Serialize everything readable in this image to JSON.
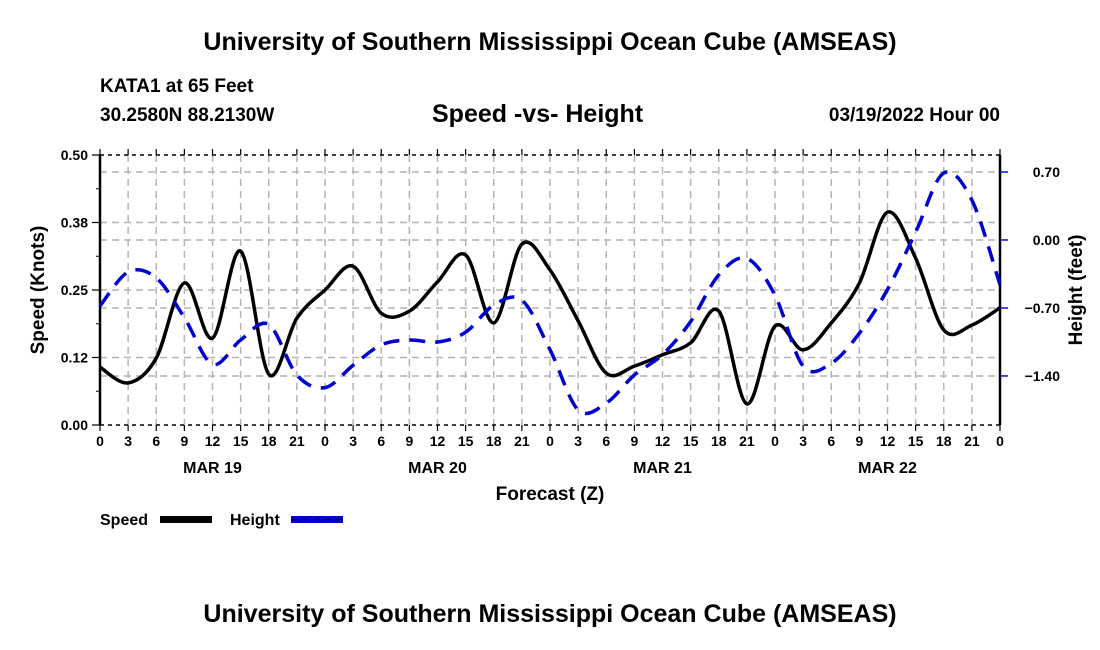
{
  "header": {
    "title": "University of Southern Mississippi Ocean Cube (AMSEAS)",
    "station": "KATA1 at 65 Feet",
    "coords": "30.2580N  88.2130W",
    "subtitle": "Speed -vs- Height",
    "datetime": "03/19/2022 Hour 00"
  },
  "footer": {
    "title": "University of Southern Mississippi Ocean Cube (AMSEAS)"
  },
  "chart_data": {
    "type": "line",
    "title": "Speed -vs- Height",
    "xlabel": "Forecast (Z)",
    "ylabel": "Speed (Knots)",
    "y2label": "Height (feet)",
    "x_hours": [
      0,
      3,
      6,
      9,
      12,
      15,
      18,
      21,
      24,
      27,
      30,
      33,
      36,
      39,
      42,
      45,
      48,
      51,
      54,
      57,
      60,
      63,
      66,
      69,
      72,
      75,
      78,
      81,
      84,
      87,
      90,
      93,
      96
    ],
    "x_tick_labels": [
      "0",
      "3",
      "6",
      "9",
      "12",
      "15",
      "18",
      "21",
      "0",
      "3",
      "6",
      "9",
      "12",
      "15",
      "18",
      "21",
      "0",
      "3",
      "6",
      "9",
      "12",
      "15",
      "18",
      "21",
      "0",
      "3",
      "6",
      "9",
      "12",
      "15",
      "18",
      "21",
      "0"
    ],
    "day_labels": [
      {
        "label": "MAR 19",
        "center_hour": 12
      },
      {
        "label": "MAR 20",
        "center_hour": 36
      },
      {
        "label": "MAR 21",
        "center_hour": 60
      },
      {
        "label": "MAR 22",
        "center_hour": 84
      }
    ],
    "xlim": [
      0,
      96
    ],
    "ylim": [
      0,
      0.5
    ],
    "y_ticks": [
      0,
      0.125,
      0.25,
      0.375,
      0.5
    ],
    "y_tick_labels": [
      "0.00",
      "0.12",
      "0.25",
      "0.38",
      "0.50"
    ],
    "y2lim": [
      -1.905,
      0.875
    ],
    "y2_ticks": [
      0.7,
      0,
      -0.7,
      -1.4
    ],
    "y2_tick_labels": [
      "0.70",
      "0.00",
      "−0.70",
      "−1.40"
    ],
    "grid": true,
    "legend_position": "bottom-left",
    "series": [
      {
        "name": "Speed",
        "axis": "left",
        "color": "#000000",
        "style": "solid",
        "values": [
          0.107,
          0.078,
          0.124,
          0.263,
          0.161,
          0.322,
          0.094,
          0.198,
          0.25,
          0.294,
          0.207,
          0.211,
          0.265,
          0.315,
          0.189,
          0.335,
          0.287,
          0.193,
          0.096,
          0.109,
          0.13,
          0.152,
          0.211,
          0.039,
          0.183,
          0.139,
          0.189,
          0.263,
          0.394,
          0.309,
          0.176,
          0.185,
          0.217
        ]
      },
      {
        "name": "Height",
        "axis": "right",
        "color": "#0000d0",
        "style": "dashed",
        "values": [
          -0.68,
          -0.33,
          -0.39,
          -0.8,
          -1.28,
          -1.03,
          -0.87,
          -1.39,
          -1.52,
          -1.29,
          -1.08,
          -1.03,
          -1.05,
          -0.95,
          -0.67,
          -0.62,
          -1.13,
          -1.75,
          -1.68,
          -1.39,
          -1.18,
          -0.84,
          -0.36,
          -0.19,
          -0.57,
          -1.3,
          -1.27,
          -0.96,
          -0.51,
          0.08,
          0.69,
          0.41,
          -0.46
        ]
      }
    ]
  }
}
